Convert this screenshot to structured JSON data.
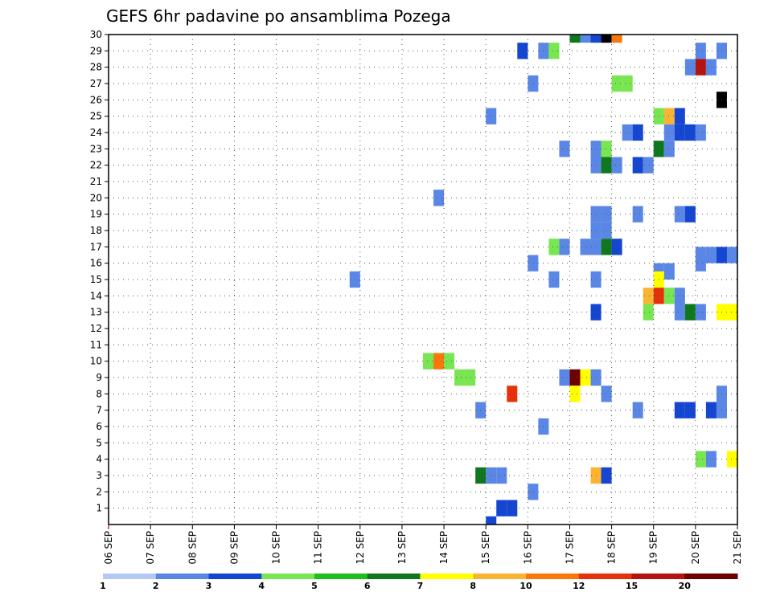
{
  "chart_data": {
    "type": "heatmap",
    "title": "GEFS 6hr padavine po ansamblima Pozega",
    "xlabel": "",
    "ylabel": "",
    "x_tick_labels": [
      "06 SEP",
      "07 SEP",
      "08 SEP",
      "09 SEP",
      "10 SEP",
      "11 SEP",
      "12 SEP",
      "13 SEP",
      "14 SEP",
      "15 SEP",
      "16 SEP",
      "17 SEP",
      "18 SEP",
      "19 SEP",
      "20 SEP",
      "21 SEP"
    ],
    "x_unit": "6-hour step from 06 SEP 00Z",
    "xlim": [
      0,
      60
    ],
    "y_tick_labels": [
      "1",
      "2",
      "3",
      "4",
      "5",
      "6",
      "7",
      "8",
      "9",
      "10",
      "11",
      "12",
      "13",
      "14",
      "15",
      "16",
      "17",
      "18",
      "19",
      "20",
      "21",
      "22",
      "23",
      "24",
      "25",
      "26",
      "27",
      "28",
      "29",
      "30"
    ],
    "ylim": [
      0,
      30
    ],
    "grid": true,
    "colorbar": {
      "labels": [
        "1",
        "2",
        "3",
        "4",
        "5",
        "6",
        "7",
        "8",
        "10",
        "12",
        "15",
        "20"
      ],
      "colors": [
        "#b4c8f5",
        "#5a87e6",
        "#1446d2",
        "#78e650",
        "#1ebe1e",
        "#0f781e",
        "#ffff00",
        "#fab432",
        "#fa780a",
        "#e6320a",
        "#b4140f",
        "#6e0000"
      ]
    },
    "cells": [
      [
        44.5,
        30,
        5
      ],
      [
        45.5,
        30,
        1
      ],
      [
        46.5,
        30,
        2
      ],
      [
        47.5,
        30,
        12
      ],
      [
        48.5,
        30,
        8
      ],
      [
        39.5,
        29,
        2
      ],
      [
        41.5,
        29,
        1
      ],
      [
        42.5,
        29,
        3
      ],
      [
        56.5,
        29,
        1
      ],
      [
        58.5,
        29,
        1
      ],
      [
        55.5,
        28,
        1
      ],
      [
        56.5,
        28,
        10
      ],
      [
        57.5,
        28,
        1
      ],
      [
        40.5,
        27,
        1
      ],
      [
        48.5,
        27,
        3
      ],
      [
        49.5,
        27,
        3
      ],
      [
        58.5,
        26,
        12
      ],
      [
        36.5,
        25,
        1
      ],
      [
        52.5,
        25,
        3
      ],
      [
        53.5,
        25,
        7
      ],
      [
        54.5,
        25,
        2
      ],
      [
        49.5,
        24,
        1
      ],
      [
        50.5,
        24,
        2
      ],
      [
        53.5,
        24,
        1
      ],
      [
        54.5,
        24,
        2
      ],
      [
        55.5,
        24,
        2
      ],
      [
        56.5,
        24,
        1
      ],
      [
        43.5,
        23,
        1
      ],
      [
        46.5,
        23,
        1
      ],
      [
        47.5,
        23,
        3
      ],
      [
        52.5,
        23,
        5
      ],
      [
        53.5,
        23,
        1
      ],
      [
        46.5,
        22,
        1
      ],
      [
        47.5,
        22,
        5
      ],
      [
        48.5,
        22,
        1
      ],
      [
        50.5,
        22,
        2
      ],
      [
        51.5,
        22,
        1
      ],
      [
        31.5,
        20,
        1
      ],
      [
        46.5,
        19,
        1
      ],
      [
        47.5,
        19,
        1
      ],
      [
        50.5,
        19,
        1
      ],
      [
        54.5,
        19,
        1
      ],
      [
        55.5,
        19,
        2
      ],
      [
        46.5,
        18,
        1
      ],
      [
        47.5,
        18,
        1
      ],
      [
        42.5,
        17,
        3
      ],
      [
        43.5,
        17,
        1
      ],
      [
        45.5,
        17,
        1
      ],
      [
        46.5,
        17,
        1
      ],
      [
        47.5,
        17,
        5
      ],
      [
        48.5,
        17,
        2
      ],
      [
        56.5,
        16.5,
        1
      ],
      [
        57.5,
        16.5,
        1
      ],
      [
        58.5,
        16.5,
        2
      ],
      [
        59.5,
        16.5,
        1
      ],
      [
        40.5,
        16,
        1
      ],
      [
        56.5,
        16,
        1
      ],
      [
        52.5,
        15.5,
        1
      ],
      [
        53.5,
        15.5,
        1
      ],
      [
        23.5,
        15,
        1
      ],
      [
        42.5,
        15,
        1
      ],
      [
        46.5,
        15,
        1
      ],
      [
        52.5,
        15,
        6
      ],
      [
        51.5,
        14,
        7
      ],
      [
        52.5,
        14,
        9
      ],
      [
        53.5,
        14,
        3
      ],
      [
        54.5,
        14,
        1
      ],
      [
        46.5,
        13,
        2
      ],
      [
        51.5,
        13,
        3
      ],
      [
        54.5,
        13,
        1
      ],
      [
        55.5,
        13,
        5
      ],
      [
        56.5,
        13,
        1
      ],
      [
        58.5,
        13,
        6
      ],
      [
        59.5,
        13,
        6
      ],
      [
        30.5,
        10,
        3
      ],
      [
        31.5,
        10,
        8
      ],
      [
        32.5,
        10,
        3
      ],
      [
        33.5,
        9,
        3
      ],
      [
        34.5,
        9,
        3
      ],
      [
        43.5,
        9,
        1
      ],
      [
        44.5,
        9,
        11
      ],
      [
        45.5,
        9,
        6
      ],
      [
        46.5,
        9,
        1
      ],
      [
        38.5,
        8,
        9
      ],
      [
        44.5,
        8,
        6
      ],
      [
        47.5,
        8,
        1
      ],
      [
        58.5,
        8,
        1
      ],
      [
        35.5,
        7,
        1
      ],
      [
        50.5,
        7,
        1
      ],
      [
        54.5,
        7,
        2
      ],
      [
        55.5,
        7,
        2
      ],
      [
        57.5,
        7,
        2
      ],
      [
        58.5,
        7,
        1
      ],
      [
        41.5,
        6,
        1
      ],
      [
        56.5,
        4,
        3
      ],
      [
        57.5,
        4,
        1
      ],
      [
        59.5,
        4,
        6
      ],
      [
        35.5,
        3,
        5
      ],
      [
        36.5,
        3,
        1
      ],
      [
        37.5,
        3,
        1
      ],
      [
        46.5,
        3,
        7
      ],
      [
        47.5,
        3,
        2
      ],
      [
        40.5,
        2,
        1
      ],
      [
        37.5,
        1,
        2
      ],
      [
        38.5,
        1,
        2
      ],
      [
        36.5,
        0,
        2
      ]
    ]
  }
}
